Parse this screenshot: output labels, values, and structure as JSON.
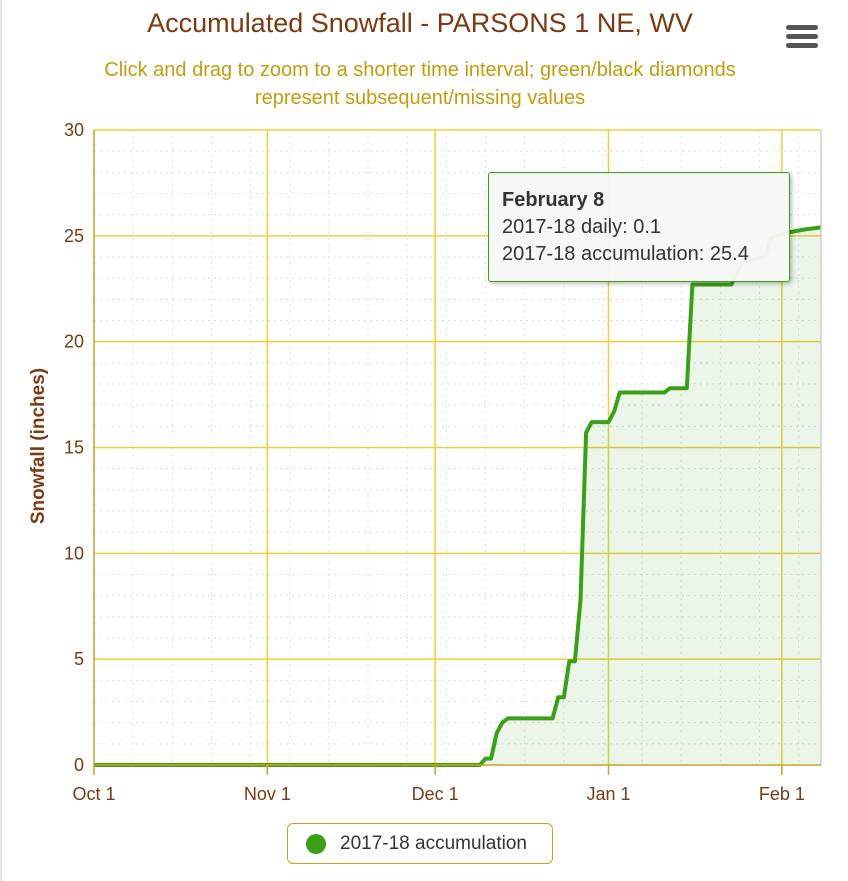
{
  "page": {
    "title": "Accumulated Snowfall - PARSONS 1 NE, WV",
    "subtitle_line1": "Click and drag to zoom to a shorter time interval; green/black diamonds",
    "subtitle_line2": "represent subsequent/missing values",
    "menu_icon": "hamburger-menu-icon"
  },
  "chart_data": {
    "type": "area",
    "title": "Accumulated Snowfall - PARSONS 1 NE, WV",
    "ylabel": "Snowfall (inches)",
    "xlabel": "",
    "ylim": [
      0,
      30
    ],
    "yticks": [
      0,
      5,
      10,
      15,
      20,
      25,
      30
    ],
    "x_domain": [
      "2017-10-01",
      "2018-02-08"
    ],
    "xticks": [
      {
        "date": "2017-10-01",
        "label": "Oct 1"
      },
      {
        "date": "2017-11-01",
        "label": "Nov 1"
      },
      {
        "date": "2017-12-01",
        "label": "Dec 1"
      },
      {
        "date": "2018-01-01",
        "label": "Jan 1"
      },
      {
        "date": "2018-02-01",
        "label": "Feb 1"
      }
    ],
    "grid": true,
    "legend_position": "bottom-center",
    "series": [
      {
        "name": "2017-18 accumulation",
        "color": "#3aa01a",
        "points": [
          [
            "2017-10-01",
            0
          ],
          [
            "2017-12-09",
            0
          ],
          [
            "2017-12-10",
            0.3
          ],
          [
            "2017-12-11",
            0.3
          ],
          [
            "2017-12-12",
            1.5
          ],
          [
            "2017-12-13",
            2.0
          ],
          [
            "2017-12-14",
            2.2
          ],
          [
            "2017-12-22",
            2.2
          ],
          [
            "2017-12-23",
            3.2
          ],
          [
            "2017-12-24",
            3.2
          ],
          [
            "2017-12-25",
            4.9
          ],
          [
            "2017-12-26",
            4.9
          ],
          [
            "2017-12-27",
            7.8
          ],
          [
            "2017-12-28",
            15.7
          ],
          [
            "2017-12-29",
            16.2
          ],
          [
            "2018-01-01",
            16.2
          ],
          [
            "2018-01-02",
            16.7
          ],
          [
            "2018-01-03",
            17.6
          ],
          [
            "2018-01-11",
            17.6
          ],
          [
            "2018-01-12",
            17.8
          ],
          [
            "2018-01-15",
            17.8
          ],
          [
            "2018-01-16",
            22.7
          ],
          [
            "2018-01-23",
            22.7
          ],
          [
            "2018-01-25",
            23.8
          ],
          [
            "2018-01-29",
            24.0
          ],
          [
            "2018-01-30",
            24.9
          ],
          [
            "2018-02-01",
            25.1
          ],
          [
            "2018-02-05",
            25.3
          ],
          [
            "2018-02-08",
            25.4
          ]
        ]
      }
    ]
  },
  "tooltip": {
    "date": "February 8",
    "daily": "2017-18 daily: 0.1",
    "accumulation": "2017-18 accumulation: 25.4"
  },
  "legend": {
    "label": "2017-18 accumulation",
    "color": "#3aa01a"
  }
}
